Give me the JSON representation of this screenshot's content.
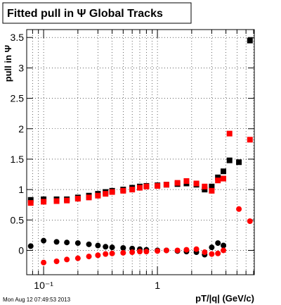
{
  "chart_data": {
    "type": "scatter",
    "title": "Fitted pull in  Ψ   Global Tracks",
    "x_label": "pT/|q| (GeV/c)",
    "y_label": "pull in Ψ",
    "footer": "Mon Aug 12 07:49:53 2013",
    "x_log": true,
    "grid": true,
    "xlim": [
      0.071,
      7.1
    ],
    "ylim": [
      -0.4,
      3.63
    ],
    "xticks": [
      {
        "value": 0.1,
        "label": "10⁻¹"
      },
      1
    ],
    "xminor_ticks": [
      0.08,
      0.09,
      0.2,
      0.3,
      0.4,
      0.5,
      0.6,
      0.7,
      0.8,
      0.9,
      2,
      3,
      4,
      5,
      6,
      7
    ],
    "yticks": [
      0,
      0.5,
      1,
      1.5,
      2,
      2.5,
      3,
      3.5
    ],
    "x": [
      0.077,
      0.1,
      0.13,
      0.16,
      0.2,
      0.25,
      0.3,
      0.35,
      0.4,
      0.5,
      0.6,
      0.7,
      0.8,
      1.0,
      1.2,
      1.5,
      1.8,
      2.2,
      2.6,
      3.0,
      3.4,
      3.8,
      4.3,
      5.2,
      6.5
    ],
    "series": [
      {
        "color": "#000000",
        "marker": "square",
        "values": [
          0.83,
          0.84,
          0.84,
          0.84,
          0.87,
          0.9,
          0.93,
          0.96,
          0.98,
          1.0,
          1.03,
          1.05,
          1.06,
          1.07,
          1.08,
          1.09,
          1.1,
          1.08,
          1.0,
          1.05,
          1.2,
          1.3,
          1.48,
          1.45,
          3.45
        ]
      },
      {
        "color": "#ff0000",
        "marker": "square",
        "values": [
          0.78,
          0.8,
          0.81,
          0.82,
          0.85,
          0.87,
          0.9,
          0.93,
          0.96,
          0.98,
          1.0,
          1.03,
          1.05,
          1.06,
          1.08,
          1.11,
          1.14,
          1.1,
          1.05,
          0.98,
          1.15,
          1.18,
          1.92,
          null,
          1.82
        ]
      },
      {
        "color": "#000000",
        "marker": "circle",
        "values": [
          0.07,
          0.16,
          0.14,
          0.13,
          0.12,
          0.1,
          0.08,
          0.06,
          0.05,
          0.04,
          0.03,
          0.02,
          0.01,
          0.0,
          0.0,
          -0.01,
          -0.02,
          -0.03,
          -0.07,
          0.05,
          0.12,
          0.08,
          null,
          null,
          null
        ]
      },
      {
        "color": "#ff0000",
        "marker": "circle",
        "values": [
          null,
          -0.2,
          -0.18,
          -0.15,
          -0.13,
          -0.1,
          -0.08,
          -0.06,
          -0.05,
          -0.04,
          -0.03,
          -0.02,
          -0.02,
          -0.01,
          0.0,
          0.0,
          0.01,
          0.02,
          -0.03,
          -0.06,
          -0.05,
          0.0,
          null,
          0.68,
          0.48
        ]
      }
    ]
  }
}
